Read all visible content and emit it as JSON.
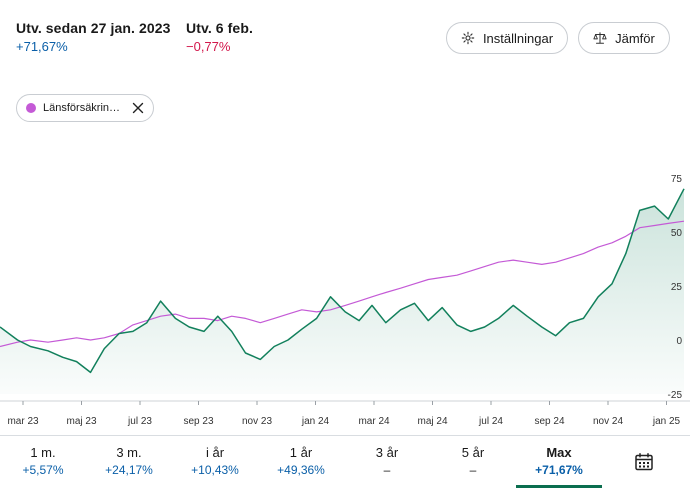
{
  "header": {
    "since": {
      "title": "Utv. sedan 27 jan. 2023",
      "value": "+71,67%"
    },
    "day": {
      "title": "Utv. 6 feb.",
      "value": "−0,77%"
    }
  },
  "buttons": {
    "settings_label": "Inställningar",
    "compare_label": "Jämför"
  },
  "comparison_chip": {
    "label": "Länsförsäkrin…",
    "color": "#c45ad6"
  },
  "colors": {
    "accent": "#0b6e4f",
    "positive": "#0a5fa8",
    "negative": "#d2174b",
    "main_series": "#12805c",
    "compare_series": "#c45ad6"
  },
  "chart_data": {
    "type": "line",
    "x_ticks": [
      "mar 23",
      "maj 23",
      "jul 23",
      "sep 23",
      "nov 23",
      "jan 24",
      "mar 24",
      "maj 24",
      "jul 24",
      "sep 24",
      "nov 24",
      "jan 25"
    ],
    "y_ticks": [
      "75",
      "50",
      "25",
      "0",
      "-25"
    ],
    "ylim": [
      -25,
      75
    ],
    "grid": false,
    "series": [
      {
        "x": [
          "2023-01-27",
          "2023-02-15",
          "2023-03-01",
          "2023-03-20",
          "2023-04-05",
          "2023-04-20",
          "2023-05-05",
          "2023-05-20",
          "2023-06-05",
          "2023-06-20",
          "2023-07-05",
          "2023-07-20",
          "2023-08-05",
          "2023-08-20",
          "2023-09-05",
          "2023-09-20",
          "2023-10-05",
          "2023-10-20",
          "2023-11-05",
          "2023-11-20",
          "2023-12-05",
          "2023-12-20",
          "2024-01-05",
          "2024-01-20",
          "2024-02-05",
          "2024-02-20",
          "2024-03-05",
          "2024-03-20",
          "2024-04-05",
          "2024-04-20",
          "2024-05-05",
          "2024-05-20",
          "2024-06-05",
          "2024-06-20",
          "2024-07-05",
          "2024-07-20",
          "2024-08-05",
          "2024-08-20",
          "2024-09-05",
          "2024-09-20",
          "2024-10-05",
          "2024-10-20",
          "2024-11-05",
          "2024-11-20",
          "2024-12-05",
          "2024-12-20",
          "2025-01-05",
          "2025-01-20",
          "2025-02-06"
        ],
        "values": [
          6,
          0,
          -3,
          -5,
          -8,
          -10,
          -15,
          -4,
          3,
          4,
          8,
          18,
          10,
          6,
          4,
          11,
          4,
          -6,
          -9,
          -3,
          0,
          5,
          10,
          20,
          13,
          9,
          16,
          8,
          14,
          17,
          9,
          15,
          7,
          4,
          6,
          10,
          16,
          11,
          6,
          2,
          8,
          10,
          20,
          26,
          40,
          60,
          62,
          56,
          70
        ]
      },
      {
        "x": [
          "2023-01-27",
          "2023-02-15",
          "2023-03-01",
          "2023-03-20",
          "2023-04-05",
          "2023-04-20",
          "2023-05-05",
          "2023-05-20",
          "2023-06-05",
          "2023-06-20",
          "2023-07-05",
          "2023-07-20",
          "2023-08-05",
          "2023-08-20",
          "2023-09-05",
          "2023-09-20",
          "2023-10-05",
          "2023-10-20",
          "2023-11-05",
          "2023-11-20",
          "2023-12-05",
          "2023-12-20",
          "2024-01-05",
          "2024-01-20",
          "2024-02-05",
          "2024-02-20",
          "2024-03-05",
          "2024-03-20",
          "2024-04-05",
          "2024-04-20",
          "2024-05-05",
          "2024-05-20",
          "2024-06-05",
          "2024-06-20",
          "2024-07-05",
          "2024-07-20",
          "2024-08-05",
          "2024-08-20",
          "2024-09-05",
          "2024-09-20",
          "2024-10-05",
          "2024-10-20",
          "2024-11-05",
          "2024-11-20",
          "2024-12-05",
          "2024-12-20",
          "2025-01-05",
          "2025-01-20",
          "2025-02-06"
        ],
        "values": [
          -3,
          -1,
          0,
          -1,
          0,
          1,
          0,
          1,
          3,
          7,
          9,
          11,
          12,
          10,
          10,
          9,
          11,
          10,
          8,
          10,
          12,
          14,
          13,
          14,
          16,
          18,
          20,
          22,
          24,
          26,
          28,
          29,
          30,
          32,
          34,
          36,
          37,
          36,
          35,
          36,
          38,
          40,
          43,
          45,
          48,
          52,
          53,
          54,
          55
        ]
      }
    ]
  },
  "periods": [
    {
      "label": "1 m.",
      "value": "+5,57%",
      "tone": "pos"
    },
    {
      "label": "3 m.",
      "value": "+24,17%",
      "tone": "pos"
    },
    {
      "label": "i år",
      "value": "+10,43%",
      "tone": "pos"
    },
    {
      "label": "1 år",
      "value": "+49,36%",
      "tone": "pos"
    },
    {
      "label": "3 år",
      "value": "–",
      "tone": "none"
    },
    {
      "label": "5 år",
      "value": "–",
      "tone": "none"
    },
    {
      "label": "Max",
      "value": "+71,67%",
      "tone": "pos",
      "active": true
    }
  ],
  "calendar_icon": "calendar-icon"
}
